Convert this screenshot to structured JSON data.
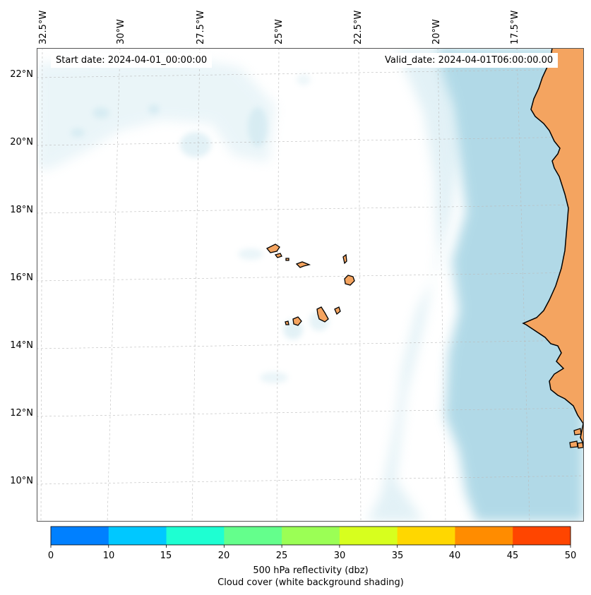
{
  "header": {
    "start_date": "Start date: 2024-04-01_00:00:00",
    "valid_date": "Valid_date: 2024-04-01T06:00:00.00"
  },
  "map": {
    "lon_labels": [
      "32.5°W",
      "30°W",
      "27.5°W",
      "25°W",
      "22.5°W",
      "20°W",
      "17.5°W"
    ],
    "lat_labels": [
      "22°N",
      "20°N",
      "18°N",
      "16°N",
      "14°N",
      "12°N",
      "10°N"
    ],
    "colors": {
      "land": "#F4A460",
      "coastline": "#000000",
      "cloud": "#ADD8E6",
      "gridline": "#bbbbbb"
    }
  },
  "colorbar": {
    "ticks": [
      "0",
      "10",
      "15",
      "20",
      "25",
      "30",
      "35",
      "40",
      "45",
      "50"
    ],
    "colors": [
      "#0080FF",
      "#00C8FF",
      "#1EFFD2",
      "#64FF8C",
      "#9BFF55",
      "#D7FF1E",
      "#FFD700",
      "#FF8C00",
      "#FF4500"
    ],
    "label_line1": "500 hPa reflectivity (dbz)",
    "label_line2": "Cloud cover (white background shading)"
  }
}
